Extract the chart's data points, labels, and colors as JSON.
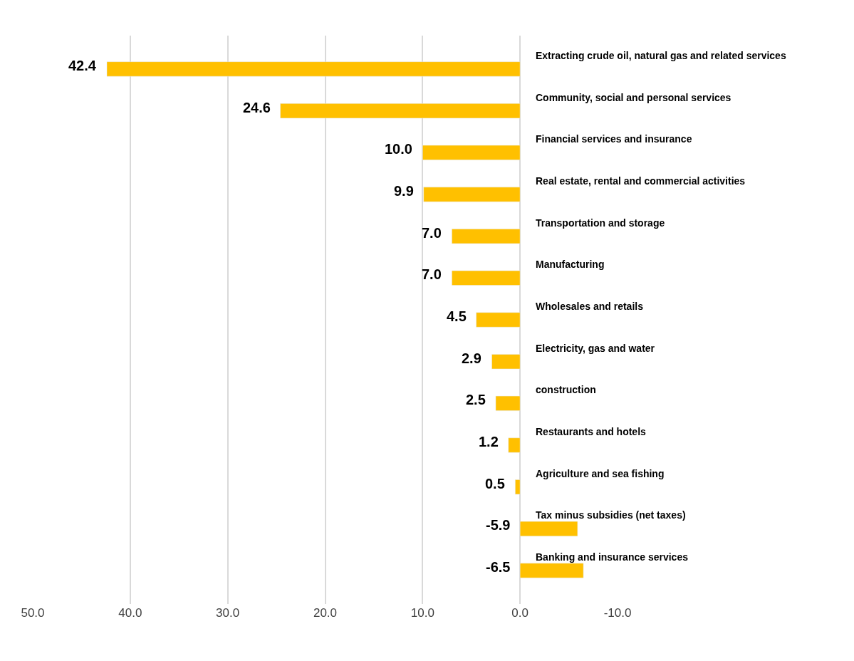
{
  "chart_data": {
    "type": "bar",
    "orientation": "horizontal",
    "categories": [
      "Extracting crude oil, natural gas and related services",
      "Community, social and personal services",
      "Financial services and insurance",
      "Real estate, rental and commercial activities",
      "Transportation and storage",
      "Manufacturing",
      "Wholesales and retails",
      "Electricity, gas and water",
      "construction",
      "Restaurants and hotels",
      "Agriculture and sea fishing",
      "Tax minus subsidies (net taxes)",
      "Banking and insurance services"
    ],
    "values": [
      42.4,
      24.6,
      10.0,
      9.9,
      7.0,
      7.0,
      4.5,
      2.9,
      2.5,
      1.2,
      0.5,
      -5.9,
      -6.5
    ],
    "color": "#ffc000",
    "xlim": [
      50,
      -10
    ],
    "xticks": [
      {
        "value": 50,
        "label": "50.0"
      },
      {
        "value": 40,
        "label": "40.0"
      },
      {
        "value": 30,
        "label": "30.0"
      },
      {
        "value": 20,
        "label": "20.0"
      },
      {
        "value": 10,
        "label": "10.0"
      },
      {
        "value": 0,
        "label": "0.0"
      },
      {
        "value": -10,
        "label": "-10.0"
      }
    ],
    "value_labels": [
      "42.4",
      "24.6",
      "10.0",
      "9.9",
      "7.0",
      "7.0",
      "4.5",
      "2.9",
      "2.5",
      "1.2",
      "0.5",
      "-5.9",
      "-6.5"
    ],
    "grid": "x"
  }
}
